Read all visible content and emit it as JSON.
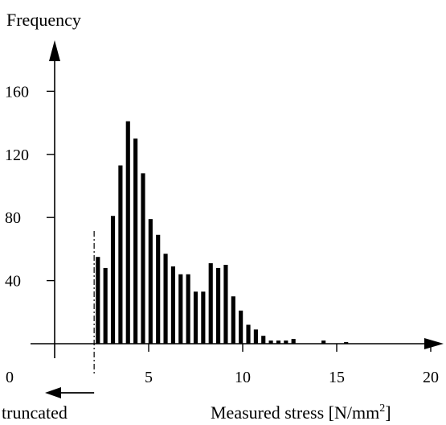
{
  "chart_data": {
    "type": "bar",
    "ylabel": "Frequency",
    "xlabel": "Measured stress [N/mm",
    "xlabel_sup": "2",
    "xlabel_close": "]",
    "truncated_label": "truncated",
    "truncation_x": 2.1,
    "xlim": [
      0,
      22
    ],
    "ylim": [
      0,
      180
    ],
    "x_ticks": [
      0,
      5,
      10,
      15,
      20
    ],
    "x_tick_labels": [
      "0",
      "5",
      "10",
      "15",
      "20"
    ],
    "y_ticks": [
      40,
      80,
      120,
      160
    ],
    "y_tick_labels": [
      "40",
      "80",
      "120",
      "160"
    ],
    "bar_width": 0.22,
    "bars": [
      {
        "x": 2.3,
        "y": 55
      },
      {
        "x": 2.7,
        "y": 48
      },
      {
        "x": 3.1,
        "y": 81
      },
      {
        "x": 3.5,
        "y": 113
      },
      {
        "x": 3.9,
        "y": 141
      },
      {
        "x": 4.3,
        "y": 130
      },
      {
        "x": 4.7,
        "y": 108
      },
      {
        "x": 5.1,
        "y": 79
      },
      {
        "x": 5.5,
        "y": 69
      },
      {
        "x": 5.9,
        "y": 57
      },
      {
        "x": 6.3,
        "y": 49
      },
      {
        "x": 6.7,
        "y": 44
      },
      {
        "x": 7.1,
        "y": 44
      },
      {
        "x": 7.5,
        "y": 33
      },
      {
        "x": 7.9,
        "y": 33
      },
      {
        "x": 8.3,
        "y": 51
      },
      {
        "x": 8.7,
        "y": 48
      },
      {
        "x": 9.1,
        "y": 50
      },
      {
        "x": 9.5,
        "y": 30
      },
      {
        "x": 9.9,
        "y": 21
      },
      {
        "x": 10.3,
        "y": 12
      },
      {
        "x": 10.7,
        "y": 9
      },
      {
        "x": 11.1,
        "y": 5
      },
      {
        "x": 11.5,
        "y": 2
      },
      {
        "x": 11.9,
        "y": 2
      },
      {
        "x": 12.3,
        "y": 2
      },
      {
        "x": 12.7,
        "y": 3
      },
      {
        "x": 14.3,
        "y": 2
      },
      {
        "x": 15.5,
        "y": 1
      }
    ]
  }
}
